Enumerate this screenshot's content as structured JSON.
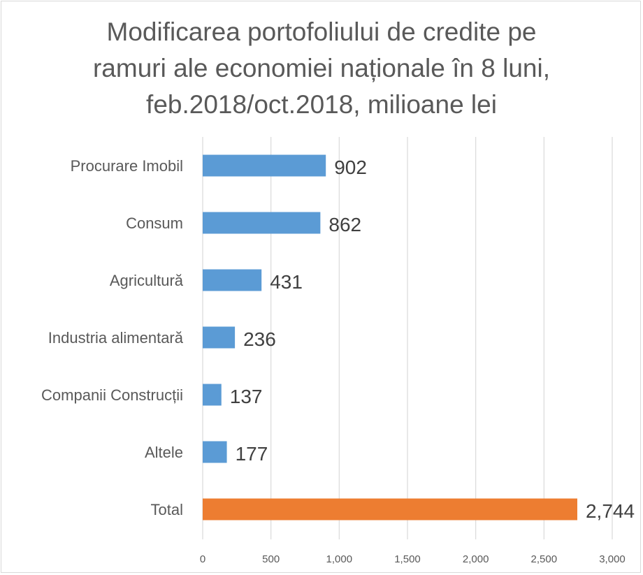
{
  "chart_data": {
    "type": "bar",
    "orientation": "horizontal",
    "title_lines": [
      "Modificarea portofoliului de credite pe",
      "ramuri ale economiei naționale în 8 luni,",
      "feb.2018/oct.2018, milioane lei"
    ],
    "categories": [
      "Procurare Imobil",
      "Consum",
      "Agricultură",
      "Industria alimentară",
      "Companii Construcții",
      "Altele",
      "Total"
    ],
    "values": [
      902,
      862,
      431,
      236,
      137,
      177,
      2744
    ],
    "data_labels": [
      "902",
      "862",
      "431",
      "236",
      "137",
      "177",
      "2,744"
    ],
    "bar_colors": [
      "#5b9bd5",
      "#5b9bd5",
      "#5b9bd5",
      "#5b9bd5",
      "#5b9bd5",
      "#5b9bd5",
      "#ed7d31"
    ],
    "xlim": [
      0,
      3000
    ],
    "xticks": [
      0,
      500,
      1000,
      1500,
      2000,
      2500,
      3000
    ],
    "xtick_labels": [
      "0",
      "500",
      "1,000",
      "1,500",
      "2,000",
      "2,500",
      "3,000"
    ],
    "grid": true,
    "legend": "none"
  }
}
